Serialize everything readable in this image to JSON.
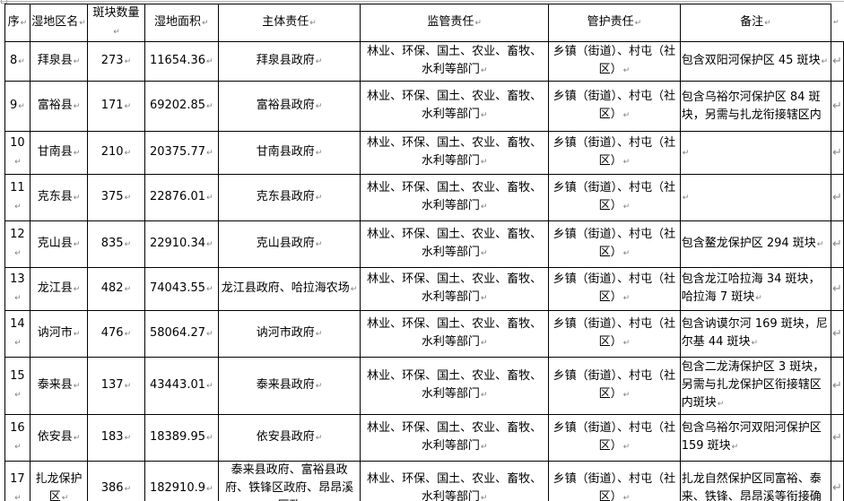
{
  "formatting": {
    "pilcrow": "↵",
    "row_end_mark": "↵"
  },
  "table": {
    "columns": [
      {
        "key": "seq",
        "label": "序"
      },
      {
        "key": "district",
        "label": "湿地区名"
      },
      {
        "key": "patches",
        "label": "斑块数量"
      },
      {
        "key": "area",
        "label": "湿地面积"
      },
      {
        "key": "main",
        "label": "主体责任"
      },
      {
        "key": "supervision",
        "label": "监管责任"
      },
      {
        "key": "management",
        "label": "管护责任"
      },
      {
        "key": "remark",
        "label": "备注"
      }
    ],
    "rows": [
      {
        "seq": "8",
        "district": "拜泉县",
        "patches": "273",
        "area": "11654.36",
        "main": "拜泉县政府",
        "supervision": "林业、环保、国土、农业、畜牧、水利等部门",
        "management": "乡镇（街道）、村屯（社区）",
        "remark": "包含双阳河保护区 45 斑块"
      },
      {
        "seq": "9",
        "district": "富裕县",
        "patches": "171",
        "area": "69202.85",
        "main": "富裕县政府",
        "supervision": "林业、环保、国土、农业、畜牧、水利等部门",
        "management": "乡镇（街道）、村屯（社区）",
        "remark": "包含乌裕尔河保护区 84 斑块，另需与扎龙衔接辖区内"
      },
      {
        "seq": "10",
        "district": "甘南县",
        "patches": "210",
        "area": "20375.77",
        "main": "甘南县政府",
        "supervision": "林业、环保、国土、农业、畜牧、水利等部门",
        "management": "乡镇（街道）、村屯（社区）",
        "remark": ""
      },
      {
        "seq": "11",
        "district": "克东县",
        "patches": "375",
        "area": "22876.01",
        "main": "克东县政府",
        "supervision": "林业、环保、国土、农业、畜牧、水利等部门",
        "management": "乡镇（街道）、村屯（社区）",
        "remark": ""
      },
      {
        "seq": "12",
        "district": "克山县",
        "patches": "835",
        "area": "22910.34",
        "main": "克山县政府",
        "supervision": "林业、环保、国土、农业、畜牧、水利等部门",
        "management": "乡镇（街道）、村屯（社区）",
        "remark": "包含鳌龙保护区 294 斑块"
      },
      {
        "seq": "13",
        "district": "龙江县",
        "patches": "482",
        "area": "74043.55",
        "main": "龙江县政府、哈拉海农场",
        "supervision": "林业、环保、国土、农业、畜牧、水利等部门",
        "management": "乡镇（街道）、村屯（社区）",
        "remark": "包含龙江哈拉海 34 斑块，哈拉海 7 斑块"
      },
      {
        "seq": "14",
        "district": "讷河市",
        "patches": "476",
        "area": "58064.27",
        "main": "讷河市政府",
        "supervision": "林业、环保、国土、农业、畜牧、水利等部门",
        "management": "乡镇（街道）、村屯（社区）",
        "remark": "包含讷谟尔河 169 斑块，尼尔基 44 斑块"
      },
      {
        "seq": "15",
        "district": "泰来县",
        "patches": "137",
        "area": "43443.01",
        "main": "泰来县政府",
        "supervision": "林业、环保、国土、农业、畜牧、水利等部门",
        "management": "乡镇（街道）、村屯（社区）",
        "remark": "包含二龙涛保护区 3 斑块，另需与扎龙保护区衔接辖区内斑块"
      },
      {
        "seq": "16",
        "district": "依安县",
        "patches": "183",
        "area": "18389.95",
        "main": "依安县政府",
        "supervision": "林业、环保、国土、农业、畜牧、水利等部门",
        "management": "乡镇（街道）、村屯（社区）",
        "remark": "包含乌裕尔河双阳河保护区 159 斑块"
      },
      {
        "seq": "17",
        "district": "扎龙保护区",
        "patches": "386",
        "area": "182910.9",
        "main": "泰来县政府、富裕县政府、铁锋区政府、昂昂溪区政",
        "supervision": "林业、环保、国土、农业、畜牧、水利等部门",
        "management": "乡镇（街道）、村屯（社区）",
        "remark": "扎龙自然保护区同富裕、泰来、铁锋、昂昂溪等衔接确"
      }
    ],
    "no_pilcrow": [
      "1.remark",
      "9.main",
      "9.remark"
    ]
  }
}
